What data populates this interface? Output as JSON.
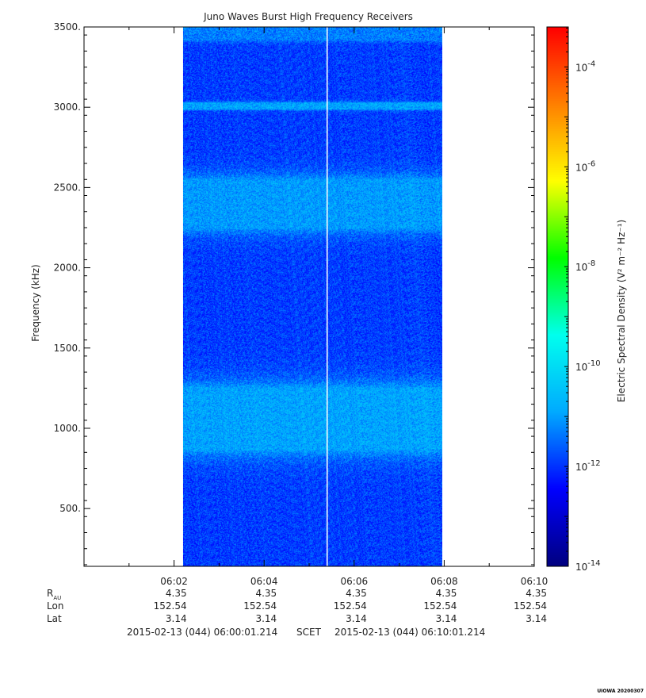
{
  "chart_data": {
    "type": "heatmap",
    "title": "Juno Waves Burst High Frequency Receivers",
    "ylabel": "Frequency (kHz)",
    "ylim": [
      140,
      3500
    ],
    "yticks": [
      {
        "value": 3500,
        "label": "3500."
      },
      {
        "value": 3000,
        "label": "3000."
      },
      {
        "value": 2500,
        "label": "2500."
      },
      {
        "value": 2000,
        "label": "2000."
      },
      {
        "value": 1500,
        "label": "1500."
      },
      {
        "value": 1000,
        "label": "1000."
      },
      {
        "value": 500,
        "label": "500."
      }
    ],
    "xlim_minutes": [
      0,
      10
    ],
    "xticks": [
      {
        "minute": 2,
        "label": "06:02"
      },
      {
        "minute": 4,
        "label": "06:04"
      },
      {
        "minute": 6,
        "label": "06:06"
      },
      {
        "minute": 8,
        "label": "06:08"
      },
      {
        "minute": 10,
        "label": "06:10"
      }
    ],
    "data_extent_minutes": [
      2.2,
      7.95
    ],
    "gap_line_minute": 5.4,
    "background_level_log10": -11.9,
    "bright_bands": [
      {
        "low_khz": 2250,
        "high_khz": 2550,
        "level_log10": -11.0
      },
      {
        "low_khz": 870,
        "high_khz": 1250,
        "level_log10": -10.9
      },
      {
        "low_khz": 2990,
        "high_khz": 3030,
        "level_log10": -10.9
      },
      {
        "low_khz": 3420,
        "high_khz": 3500,
        "level_log10": -11.3
      }
    ],
    "colorbar": {
      "label": "Electric Spectral Density (V² m⁻² Hz⁻¹)",
      "log10_range": [
        -14,
        -3.2
      ],
      "ticks": [
        {
          "exponent": -4,
          "label": "-4"
        },
        {
          "exponent": -6,
          "label": "-6"
        },
        {
          "exponent": -8,
          "label": "-8"
        },
        {
          "exponent": -10,
          "label": "-10"
        },
        {
          "exponent": -12,
          "label": "-12"
        },
        {
          "exponent": -14,
          "label": "-14"
        }
      ],
      "colormap": [
        "#000080",
        "#0000ff",
        "#00aaff",
        "#00ffee",
        "#00ff00",
        "#ffff00",
        "#ff8000",
        "#ff0000"
      ]
    },
    "grid": false
  },
  "ephemeris": {
    "rows": [
      {
        "label": "R",
        "sub": "AU",
        "values": [
          "4.35",
          "4.35",
          "4.35",
          "4.35",
          "4.35"
        ]
      },
      {
        "label": "Lon",
        "values": [
          "152.54",
          "152.54",
          "152.54",
          "152.54",
          "152.54"
        ]
      },
      {
        "label": "Lat",
        "values": [
          "3.14",
          "3.14",
          "3.14",
          "3.14",
          "3.14"
        ]
      }
    ]
  },
  "footer": {
    "start": "2015-02-13 (044) 06:00:01.214",
    "scet": "SCET",
    "end": "2015-02-13 (044) 06:10:01.214"
  },
  "credit": "UIOWA 20200307"
}
